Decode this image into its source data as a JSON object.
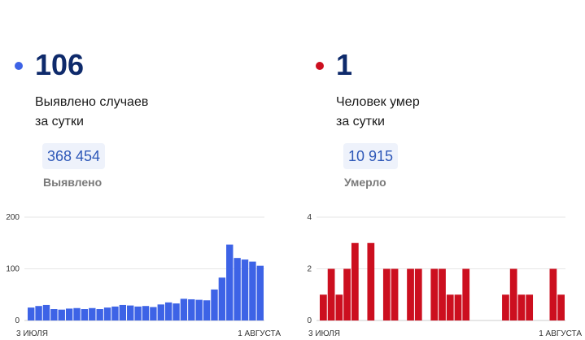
{
  "panels": [
    {
      "id": "cases",
      "accent": "#3d63e6",
      "value": "106",
      "desc_line1": "Выявлено случаев",
      "desc_line2": "за сутки",
      "total": "368 454",
      "total_label": "Выявлено"
    },
    {
      "id": "deaths",
      "accent": "#cc0f1f",
      "value": "1",
      "desc_line1": "Человек умер",
      "desc_line2": "за сутки",
      "total": "10 915",
      "total_label": "Умерло"
    }
  ],
  "chart_data": [
    {
      "type": "bar",
      "color": "#3d63e6",
      "x_start_label": "3 ИЮЛЯ",
      "x_end_label": "1 АВГУСТА",
      "ylim": [
        0,
        200
      ],
      "yticks": [
        0,
        100,
        200
      ],
      "grid": true,
      "values": [
        25,
        28,
        30,
        22,
        21,
        23,
        24,
        22,
        24,
        22,
        25,
        27,
        30,
        29,
        27,
        28,
        26,
        31,
        35,
        33,
        42,
        41,
        40,
        39,
        60,
        83,
        147,
        121,
        118,
        114,
        106
      ]
    },
    {
      "type": "bar",
      "color": "#cc0f1f",
      "x_start_label": "3 ИЮЛЯ",
      "x_end_label": "1 АВГУСТА",
      "ylim": [
        0,
        4
      ],
      "yticks": [
        0,
        2,
        4
      ],
      "grid": true,
      "values": [
        1,
        2,
        1,
        2,
        3,
        0,
        3,
        0,
        2,
        2,
        0,
        2,
        2,
        0,
        2,
        2,
        1,
        1,
        2,
        0,
        0,
        0,
        0,
        1,
        2,
        1,
        1,
        0,
        0,
        2,
        1
      ]
    }
  ]
}
